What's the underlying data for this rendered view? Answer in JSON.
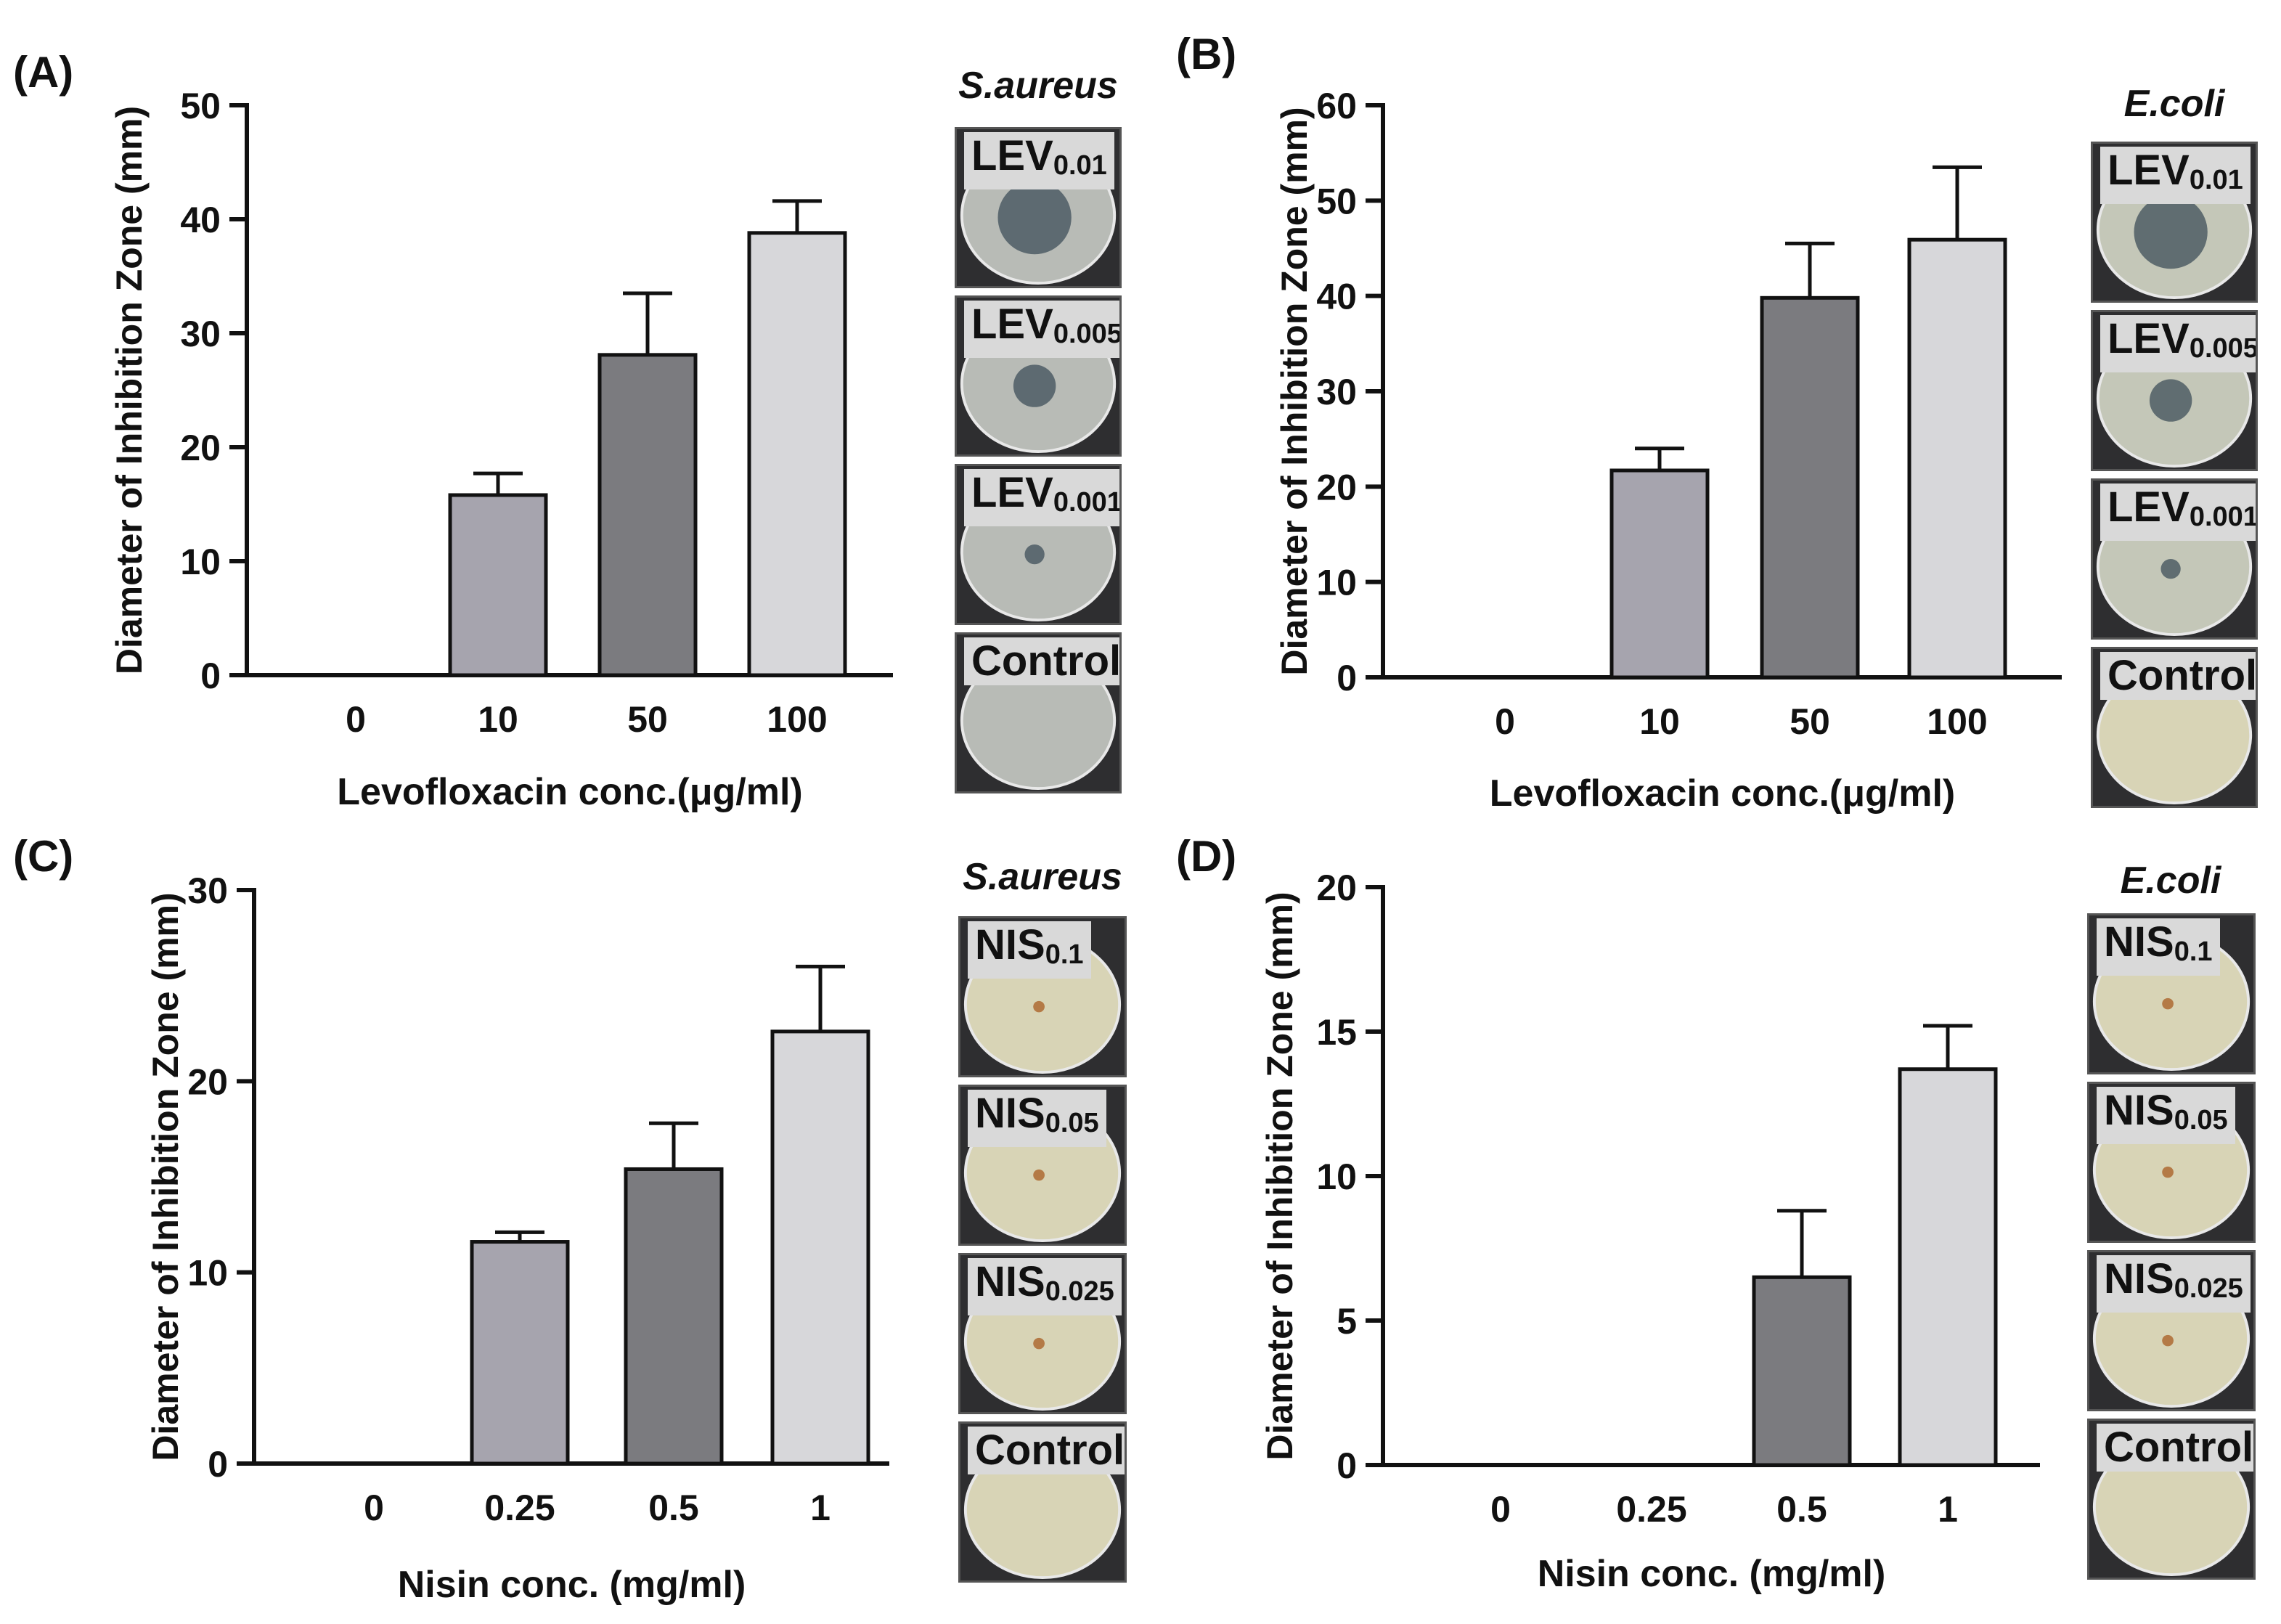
{
  "colors": {
    "bar_light_purple": "#a6a4ae",
    "bar_dark_gray": "#7b7b7f",
    "bar_light_gray": "#d7d7da",
    "axis": "#111111",
    "plate_dark": "#2e2e30",
    "agar_gray": "#b8bbb6",
    "agar_yellow": "#d8d4b6",
    "zone_dark": "#3f4f5a"
  },
  "chart_data": [
    {
      "panel": "(A)",
      "type": "bar",
      "title": "",
      "xlabel": "Levofloxacin conc.(μg/ml)",
      "ylabel": "Diameter of Inhibition Zone  (mm)",
      "categories": [
        "0",
        "10",
        "50",
        "100"
      ],
      "values": [
        0,
        15.8,
        28.1,
        38.8
      ],
      "errors": [
        0,
        1.9,
        5.4,
        2.8
      ],
      "ylim": [
        0,
        50
      ],
      "yticks": [
        "0",
        "10",
        "20",
        "30",
        "40",
        "50"
      ],
      "grid": false,
      "organism": "S.aureus",
      "plates": [
        {
          "base": "LEV",
          "sub": "0.01",
          "zone": "large"
        },
        {
          "base": "LEV",
          "sub": "0.005",
          "zone": "medium"
        },
        {
          "base": "LEV",
          "sub": "0.001",
          "zone": "small"
        },
        {
          "base": "Control",
          "sub": "",
          "zone": "none"
        }
      ]
    },
    {
      "panel": "(B)",
      "type": "bar",
      "title": "",
      "xlabel": "Levofloxacin conc.(μg/ml)",
      "ylabel": "Diameter of Inhibition Zone  (mm)",
      "categories": [
        "0",
        "10",
        "50",
        "100"
      ],
      "values": [
        0,
        21.7,
        39.8,
        45.9
      ],
      "errors": [
        0,
        2.3,
        5.7,
        7.6
      ],
      "ylim": [
        0,
        60
      ],
      "yticks": [
        "0",
        "10",
        "20",
        "30",
        "40",
        "50",
        "60"
      ],
      "grid": false,
      "organism": "E.coli",
      "plates": [
        {
          "base": "LEV",
          "sub": "0.01",
          "zone": "large"
        },
        {
          "base": "LEV",
          "sub": "0.005",
          "zone": "medium"
        },
        {
          "base": "LEV",
          "sub": "0.001",
          "zone": "small"
        },
        {
          "base": "Control",
          "sub": "",
          "zone": "none"
        }
      ]
    },
    {
      "panel": "(C)",
      "type": "bar",
      "title": "",
      "xlabel": "Nisin conc. (mg/ml)",
      "ylabel": "Diameter of Inhibition Zone  (mm)",
      "categories": [
        "0",
        "0.25",
        "0.5",
        "1"
      ],
      "values": [
        0,
        11.6,
        15.4,
        22.6
      ],
      "errors": [
        0,
        0.5,
        2.4,
        3.4
      ],
      "ylim": [
        0,
        30
      ],
      "yticks": [
        "0",
        "10",
        "20",
        "30"
      ],
      "grid": false,
      "organism": "S.aureus",
      "plates": [
        {
          "base": "NIS",
          "sub": "0.1",
          "zone": "dot"
        },
        {
          "base": "NIS",
          "sub": "0.05",
          "zone": "dot"
        },
        {
          "base": "NIS",
          "sub": "0.025",
          "zone": "dot"
        },
        {
          "base": "Control",
          "sub": "",
          "zone": "none"
        }
      ]
    },
    {
      "panel": "(D)",
      "type": "bar",
      "title": "",
      "xlabel": "Nisin conc. (mg/ml)",
      "ylabel": "Diameter of Inhibition Zone  (mm)",
      "categories": [
        "0",
        "0.25",
        "0.5",
        "1"
      ],
      "values": [
        0,
        0,
        6.5,
        13.7
      ],
      "errors": [
        0,
        0,
        2.3,
        1.5
      ],
      "ylim": [
        0,
        20
      ],
      "yticks": [
        "0",
        "5",
        "10",
        "15",
        "20"
      ],
      "grid": false,
      "organism": "E.coli",
      "plates": [
        {
          "base": "NIS",
          "sub": "0.1",
          "zone": "dot"
        },
        {
          "base": "NIS",
          "sub": "0.05",
          "zone": "dot"
        },
        {
          "base": "NIS",
          "sub": "0.025",
          "zone": "dot"
        },
        {
          "base": "Control",
          "sub": "",
          "zone": "none"
        }
      ]
    }
  ]
}
